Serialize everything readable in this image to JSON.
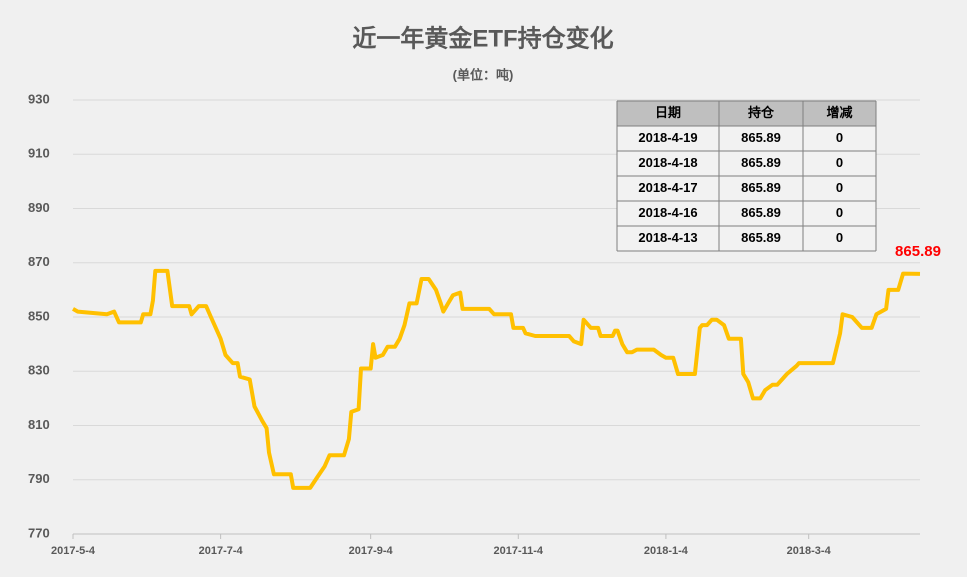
{
  "chart_data": {
    "type": "line",
    "title": "近一年黄金ETF持仓变化",
    "subtitle": "(单位：吨)",
    "x": [
      "2017-5-4",
      "2017-5-6",
      "2017-5-18",
      "2017-5-21",
      "2017-5-23",
      "2017-6-1",
      "2017-6-2",
      "2017-6-5",
      "2017-6-6",
      "2017-6-7",
      "2017-6-12",
      "2017-6-14",
      "2017-6-21",
      "2017-6-22",
      "2017-6-25",
      "2017-6-28",
      "2017-6-30",
      "2017-7-4",
      "2017-7-6",
      "2017-7-9",
      "2017-7-11",
      "2017-7-12",
      "2017-7-16",
      "2017-7-18",
      "2017-7-21",
      "2017-7-23",
      "2017-7-24",
      "2017-7-26",
      "2017-8-2",
      "2017-8-3",
      "2017-8-10",
      "2017-8-13",
      "2017-8-16",
      "2017-8-18",
      "2017-8-24",
      "2017-8-26",
      "2017-8-27",
      "2017-8-30",
      "2017-8-31",
      "2017-9-4",
      "2017-9-5",
      "2017-9-6",
      "2017-9-9",
      "2017-9-11",
      "2017-9-14",
      "2017-9-16",
      "2017-9-18",
      "2017-9-20",
      "2017-9-23",
      "2017-9-25",
      "2017-9-28",
      "2017-10-1",
      "2017-10-3",
      "2017-10-4",
      "2017-10-6",
      "2017-10-8",
      "2017-10-11",
      "2017-10-12",
      "2017-10-23",
      "2017-10-25",
      "2017-11-1",
      "2017-11-2",
      "2017-11-6",
      "2017-11-7",
      "2017-11-11",
      "2017-11-25",
      "2017-11-27",
      "2017-11-30",
      "2017-12-1",
      "2017-12-4",
      "2017-12-7",
      "2017-12-8",
      "2017-12-13",
      "2017-12-14",
      "2017-12-15",
      "2017-12-17",
      "2017-12-19",
      "2017-12-21",
      "2017-12-23",
      "2017-12-30",
      "2018-1-2",
      "2018-1-4",
      "2018-1-7",
      "2018-1-9",
      "2018-1-16",
      "2018-1-18",
      "2018-1-19",
      "2018-1-21",
      "2018-1-23",
      "2018-1-25",
      "2018-1-28",
      "2018-1-30",
      "2018-2-4",
      "2018-2-5",
      "2018-2-7",
      "2018-2-9",
      "2018-2-12",
      "2018-2-14",
      "2018-2-17",
      "2018-2-19",
      "2018-2-21",
      "2018-2-23",
      "2018-2-27",
      "2018-2-28",
      "2018-3-14",
      "2018-3-17",
      "2018-3-18",
      "2018-3-22",
      "2018-3-26",
      "2018-3-30",
      "2018-4-1",
      "2018-4-5",
      "2018-4-6",
      "2018-4-10",
      "2018-4-12",
      "2018-4-19"
    ],
    "series": [
      {
        "color": "#ffc000",
        "values": [
          853,
          852,
          851,
          852,
          848,
          848,
          851,
          851,
          856,
          867,
          867,
          854,
          854,
          851,
          854,
          854,
          850,
          842,
          836,
          833,
          833,
          828,
          827,
          817,
          812,
          809,
          800,
          792,
          792,
          787,
          787,
          791,
          795,
          799,
          799,
          805,
          815,
          816,
          831,
          831,
          840,
          835,
          836,
          839,
          839,
          842,
          847,
          855,
          855,
          864,
          864,
          860,
          855,
          852,
          855,
          858,
          859,
          853,
          853,
          851,
          851,
          846,
          846,
          844,
          843,
          843,
          841,
          840,
          849,
          846,
          846,
          843,
          843,
          845,
          845,
          840,
          837,
          837,
          838,
          838,
          836,
          835,
          835,
          829,
          829,
          846,
          847,
          847,
          849,
          849,
          847,
          842,
          842,
          829,
          826,
          820,
          820,
          823,
          825,
          825,
          827,
          829,
          832,
          833,
          833,
          844,
          851,
          850,
          846,
          846,
          851,
          853,
          860,
          860,
          866,
          865.89
        ]
      }
    ],
    "xlim": [
      "2017-5-4",
      "2018-4-19"
    ],
    "xticks": [
      "2017-5-4",
      "2017-7-4",
      "2017-9-4",
      "2017-11-4",
      "2018-1-4",
      "2018-3-4"
    ],
    "ylim": [
      770,
      930
    ],
    "yticks": [
      770,
      790,
      810,
      830,
      850,
      870,
      890,
      910,
      930
    ],
    "grid": true,
    "label_color": "#ff0000"
  },
  "table": {
    "header": [
      "日期",
      "持仓",
      "增减"
    ],
    "rows": [
      [
        "2018-4-19",
        865.89,
        0
      ],
      [
        "2018-4-18",
        865.89,
        0
      ],
      [
        "2018-4-17",
        865.89,
        0
      ],
      [
        "2018-4-16",
        865.89,
        0
      ],
      [
        "2018-4-13",
        865.89,
        0
      ]
    ]
  }
}
